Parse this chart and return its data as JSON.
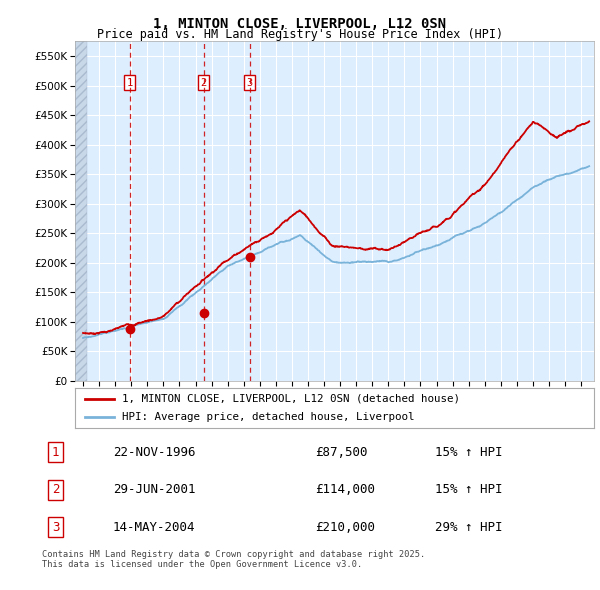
{
  "title": "1, MINTON CLOSE, LIVERPOOL, L12 0SN",
  "subtitle": "Price paid vs. HM Land Registry's House Price Index (HPI)",
  "hpi_color": "#7ab3d9",
  "price_color": "#cc0000",
  "vline_color": "#cc0000",
  "background_chart": "#ddeeff",
  "grid_color": "#ffffff",
  "ylim": [
    0,
    575000
  ],
  "yticks": [
    0,
    50000,
    100000,
    150000,
    200000,
    250000,
    300000,
    350000,
    400000,
    450000,
    500000,
    550000
  ],
  "xlim_start": 1993.5,
  "xlim_end": 2025.8,
  "hatch_end": 1994.25,
  "sale_years": [
    1996.9,
    2001.5,
    2004.37
  ],
  "sale_prices": [
    87500,
    114000,
    210000
  ],
  "sale_labels": [
    "1",
    "2",
    "3"
  ],
  "legend_label_price": "1, MINTON CLOSE, LIVERPOOL, L12 0SN (detached house)",
  "legend_label_hpi": "HPI: Average price, detached house, Liverpool",
  "footer": "Contains HM Land Registry data © Crown copyright and database right 2025.\nThis data is licensed under the Open Government Licence v3.0.",
  "table_rows": [
    [
      "1",
      "22-NOV-1996",
      "£87,500",
      "15% ↑ HPI"
    ],
    [
      "2",
      "29-JUN-2001",
      "£114,000",
      "15% ↑ HPI"
    ],
    [
      "3",
      "14-MAY-2004",
      "£210,000",
      "29% ↑ HPI"
    ]
  ]
}
